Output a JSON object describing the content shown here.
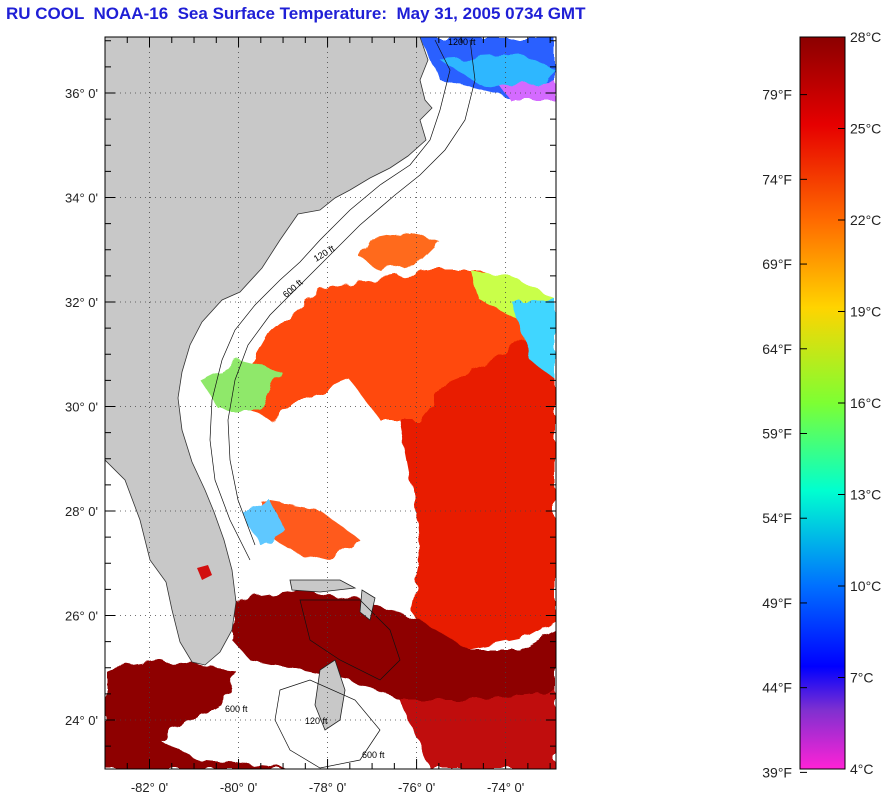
{
  "title": "RU COOL  NOAA-16  Sea Surface Temperature:  May 31, 2005 0734 GMT",
  "map": {
    "lon_range": [
      -83.0,
      -72.8
    ],
    "lat_range": [
      23.0,
      37.0
    ],
    "lat_ticks": [
      {
        "value": 36,
        "label": "36° 0'"
      },
      {
        "value": 34,
        "label": "34° 0'"
      },
      {
        "value": 32,
        "label": "32° 0'"
      },
      {
        "value": 30,
        "label": "30° 0'"
      },
      {
        "value": 28,
        "label": "28° 0'"
      },
      {
        "value": 26,
        "label": "26° 0'"
      },
      {
        "value": 24,
        "label": "24° 0'"
      }
    ],
    "lon_ticks": [
      {
        "value": -82,
        "label": "-82° 0'"
      },
      {
        "value": -80,
        "label": "-80° 0'"
      },
      {
        "value": -78,
        "label": "-78° 0'"
      },
      {
        "value": -76,
        "label": "-76° 0'"
      },
      {
        "value": -74,
        "label": "-74° 0'"
      }
    ],
    "contour_labels": [
      "120 ft",
      "600 ft",
      "1200 ft"
    ],
    "colors": {
      "land": "#c8c8c8",
      "warm": "#cc0000",
      "hot": "#8b0000",
      "mid": "#ff5a1a",
      "cool": "#2a9bff",
      "cold": "#1a2cff"
    }
  },
  "colorbar": {
    "celsius_range": [
      4,
      28
    ],
    "celsius_labels": [
      "28°C",
      "25°C",
      "22°C",
      "19°C",
      "16°C",
      "13°C",
      "10°C",
      "7°C",
      "4°C"
    ],
    "fahrenheit_labels": [
      "79°F",
      "74°F",
      "69°F",
      "64°F",
      "59°F",
      "54°F",
      "49°F",
      "44°F",
      "39°F"
    ],
    "fahrenheit_values": [
      79,
      74,
      69,
      64,
      59,
      54,
      49,
      44,
      39
    ],
    "stops": [
      "#8b0000",
      "#ff0000",
      "#ff7a00",
      "#ffff00",
      "#00ff66",
      "#00ffff",
      "#0044ff",
      "#7a3bd9",
      "#ff22d6"
    ]
  }
}
